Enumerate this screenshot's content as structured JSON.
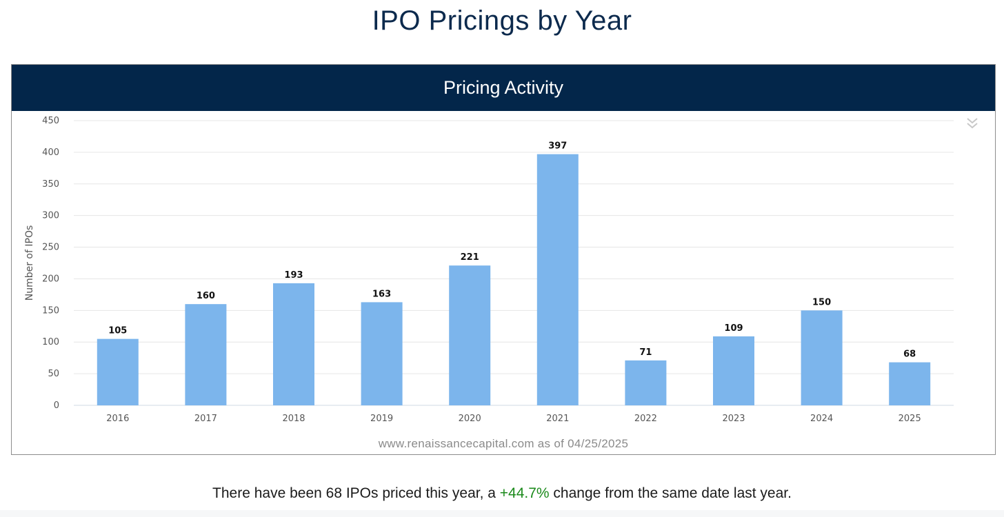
{
  "page": {
    "title": "IPO Pricings by Year",
    "panel_title": "Pricing Activity",
    "watermark": "www.renaissancecapital.com as of 04/25/2025",
    "summary": {
      "prefix": "There have been 68 IPOs priced this year, a ",
      "pct": "+44.7%",
      "suffix": " change from the same date last year."
    },
    "colors": {
      "header_bg": "#03264a",
      "bar": "#7cb5ec",
      "positive": "#1b8a1b"
    },
    "menu_icon": "chevron-double-down-icon"
  },
  "chart_data": {
    "type": "bar",
    "title": "Pricing Activity",
    "ylabel": "Number of IPOs",
    "xlabel": "",
    "categories": [
      "2016",
      "2017",
      "2018",
      "2019",
      "2020",
      "2021",
      "2022",
      "2023",
      "2024",
      "2025"
    ],
    "values": [
      105,
      160,
      193,
      163,
      221,
      397,
      71,
      109,
      150,
      68
    ],
    "ylim": [
      0,
      450
    ],
    "yticks": [
      0,
      50,
      100,
      150,
      200,
      250,
      300,
      350,
      400,
      450
    ],
    "grid": true,
    "data_labels": true,
    "legend": "none"
  }
}
